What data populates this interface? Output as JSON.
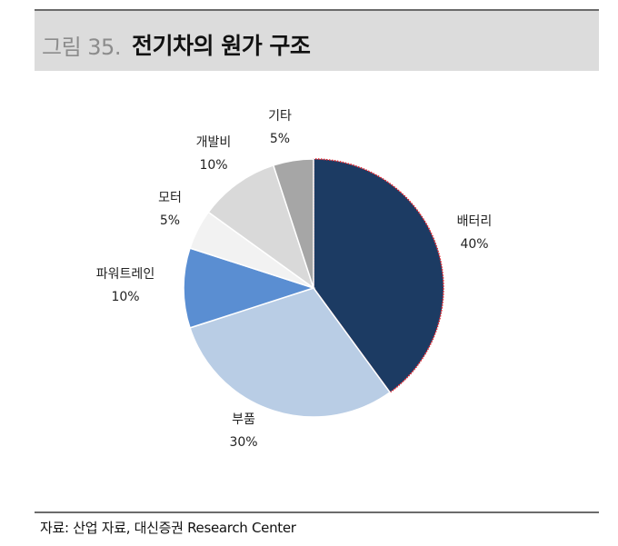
{
  "figure": {
    "label": "그림 35.",
    "title": "전기차의 원가 구조"
  },
  "source": "자료: 산업 자료, 대신증권 Research Center",
  "chart_data": {
    "type": "pie",
    "slices": [
      {
        "name": "배터리",
        "value": 40,
        "value_label": "40%",
        "color": "#1c3b63"
      },
      {
        "name": "부품",
        "value": 30,
        "value_label": "30%",
        "color": "#b9cde5"
      },
      {
        "name": "파워트레인",
        "value": 10,
        "value_label": "10%",
        "color": "#5a8ed2"
      },
      {
        "name": "모터",
        "value": 5,
        "value_label": "5%",
        "color": "#f2f2f2"
      },
      {
        "name": "개발비",
        "value": 10,
        "value_label": "10%",
        "color": "#d9d9d9"
      },
      {
        "name": "기타",
        "value": 5,
        "value_label": "5%",
        "color": "#a6a6a6"
      }
    ],
    "start_angle": "12 o'clock",
    "direction": "clockwise",
    "highlight_border_color": "#e0212b"
  }
}
